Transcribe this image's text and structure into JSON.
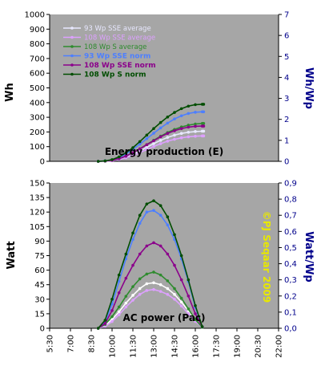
{
  "chart_data": [
    {
      "type": "line",
      "title": "Energy production (E)",
      "ylabel": "Wh",
      "y2label": "Wh/Wp",
      "ylim": [
        0,
        1000
      ],
      "y2lim": [
        0,
        7
      ],
      "y_ticks": [
        "0",
        "100",
        "200",
        "300",
        "400",
        "500",
        "600",
        "700",
        "800",
        "900",
        "1000"
      ],
      "y2_ticks": [
        "0",
        "1",
        "2",
        "3",
        "4",
        "5",
        "6",
        "7"
      ],
      "series": [
        {
          "name": "93 Wp SSE average",
          "color": "#e8e8ff",
          "axis": "left",
          "x": [
            9.0,
            9.5,
            10.0,
            10.5,
            11.0,
            11.5,
            12.0,
            12.5,
            13.0,
            13.5,
            14.0,
            14.5,
            15.0,
            15.5,
            16.0,
            16.5,
            16.6
          ],
          "values": [
            0,
            1,
            5,
            14,
            28,
            47,
            70,
            95,
            120,
            143,
            163,
            178,
            190,
            198,
            203,
            205,
            205
          ]
        },
        {
          "name": "108 Wp SSE average",
          "color": "#dda0ff",
          "axis": "left",
          "x": [
            9.0,
            9.5,
            10.0,
            10.5,
            11.0,
            11.5,
            12.0,
            12.5,
            13.0,
            13.5,
            14.0,
            14.5,
            15.0,
            15.5,
            16.0,
            16.5,
            16.6
          ],
          "values": [
            0,
            1,
            4,
            12,
            24,
            40,
            59,
            80,
            101,
            120,
            137,
            150,
            160,
            167,
            171,
            173,
            173
          ]
        },
        {
          "name": "108 Wp S average",
          "color": "#2e8b2e",
          "axis": "left",
          "x": [
            9.0,
            9.5,
            10.0,
            10.5,
            11.0,
            11.5,
            12.0,
            12.5,
            13.0,
            13.5,
            14.0,
            14.5,
            15.0,
            15.5,
            16.0,
            16.5,
            16.6
          ],
          "values": [
            0,
            2,
            7,
            18,
            35,
            58,
            85,
            114,
            143,
            171,
            196,
            217,
            234,
            246,
            254,
            258,
            258
          ]
        },
        {
          "name": "93 Wp SSE norm",
          "color": "#4d7fff",
          "axis": "right",
          "x": [
            9.0,
            9.5,
            10.0,
            10.5,
            11.0,
            11.5,
            12.0,
            12.5,
            13.0,
            13.5,
            14.0,
            14.5,
            15.0,
            15.5,
            16.0,
            16.5,
            16.6
          ],
          "values": [
            0,
            0.02,
            0.07,
            0.18,
            0.35,
            0.57,
            0.82,
            1.08,
            1.34,
            1.59,
            1.82,
            2.02,
            2.17,
            2.28,
            2.34,
            2.36,
            2.36
          ]
        },
        {
          "name": "108 Wp SSE norm",
          "color": "#8b008b",
          "axis": "right",
          "x": [
            9.0,
            9.5,
            10.0,
            10.5,
            11.0,
            11.5,
            12.0,
            12.5,
            13.0,
            13.5,
            14.0,
            14.5,
            15.0,
            15.5,
            16.0,
            16.5,
            16.6
          ],
          "values": [
            0,
            0.01,
            0.05,
            0.13,
            0.25,
            0.41,
            0.59,
            0.79,
            0.98,
            1.17,
            1.33,
            1.46,
            1.56,
            1.63,
            1.67,
            1.68,
            1.68
          ]
        },
        {
          "name": "108 Wp S norm",
          "color": "#004d00",
          "axis": "right",
          "x": [
            9.0,
            9.5,
            10.0,
            10.5,
            11.0,
            11.5,
            12.0,
            12.5,
            13.0,
            13.5,
            14.0,
            14.5,
            15.0,
            15.5,
            16.0,
            16.5,
            16.6
          ],
          "values": [
            0,
            0.02,
            0.08,
            0.21,
            0.4,
            0.65,
            0.94,
            1.25,
            1.56,
            1.85,
            2.11,
            2.33,
            2.51,
            2.63,
            2.7,
            2.72,
            2.72
          ]
        }
      ]
    },
    {
      "type": "line",
      "title": "AC power (Pac)",
      "ylabel": "Watt",
      "y2label": "Watt/Wp",
      "ylim": [
        0,
        150
      ],
      "y2lim": [
        0,
        0.9
      ],
      "y_ticks": [
        "0",
        "15",
        "30",
        "45",
        "60",
        "75",
        "90",
        "105",
        "120",
        "135",
        "150"
      ],
      "y2_ticks": [
        "0,0",
        "0,1",
        "0,2",
        "0,3",
        "0,4",
        "0,5",
        "0,6",
        "0,7",
        "0,8",
        "0,9"
      ],
      "x_ticks": [
        "5:30",
        "7:00",
        "8:30",
        "10:00",
        "11:30",
        "13:00",
        "14:30",
        "16:00",
        "17:30",
        "19:00",
        "20:30",
        "22:00"
      ],
      "xlim": [
        5.5,
        22.0
      ],
      "series": [
        {
          "name": "93 Wp SSE average",
          "color": "#ffffff",
          "axis": "left",
          "x": [
            9.0,
            9.5,
            10.0,
            10.5,
            11.0,
            11.5,
            12.0,
            12.5,
            13.0,
            13.5,
            14.0,
            14.5,
            15.0,
            15.5,
            16.0,
            16.5
          ],
          "values": [
            0,
            3,
            9,
            17,
            26,
            34,
            41,
            46,
            47,
            45,
            41,
            35,
            27,
            18,
            8,
            1
          ]
        },
        {
          "name": "108 Wp SSE average",
          "color": "#dda0ff",
          "axis": "left",
          "x": [
            9.0,
            9.5,
            10.0,
            10.5,
            11.0,
            11.5,
            12.0,
            12.5,
            13.0,
            13.5,
            14.0,
            14.5,
            15.0,
            15.5,
            16.0,
            16.5
          ],
          "values": [
            0,
            2,
            7,
            14,
            22,
            29,
            35,
            39,
            40,
            38,
            35,
            30,
            23,
            15,
            7,
            1
          ]
        },
        {
          "name": "108 Wp S average",
          "color": "#2e8b2e",
          "axis": "left",
          "x": [
            9.0,
            9.5,
            10.0,
            10.5,
            11.0,
            11.5,
            12.0,
            12.5,
            13.0,
            13.5,
            14.0,
            14.5,
            15.0,
            15.5,
            16.0,
            16.5
          ],
          "values": [
            0,
            4,
            12,
            22,
            33,
            43,
            51,
            56,
            58,
            55,
            49,
            41,
            31,
            20,
            9,
            1
          ]
        },
        {
          "name": "93 Wp SSE norm",
          "color": "#4d7fff",
          "axis": "right",
          "x": [
            9.0,
            9.5,
            10.0,
            10.5,
            11.0,
            11.5,
            12.0,
            12.5,
            13.0,
            13.5,
            14.0,
            14.5,
            15.0,
            15.5,
            16.0,
            16.5
          ],
          "values": [
            0,
            0.04,
            0.15,
            0.29,
            0.43,
            0.55,
            0.65,
            0.72,
            0.73,
            0.7,
            0.64,
            0.55,
            0.43,
            0.29,
            0.13,
            0.01
          ]
        },
        {
          "name": "108 Wp SSE norm",
          "color": "#8b008b",
          "axis": "right",
          "x": [
            9.0,
            9.5,
            10.0,
            10.5,
            11.0,
            11.5,
            12.0,
            12.5,
            13.0,
            13.5,
            14.0,
            14.5,
            15.0,
            15.5,
            16.0,
            16.5
          ],
          "values": [
            0,
            0.03,
            0.11,
            0.22,
            0.31,
            0.39,
            0.46,
            0.51,
            0.53,
            0.51,
            0.46,
            0.39,
            0.3,
            0.2,
            0.09,
            0.01
          ]
        },
        {
          "name": "108 Wp S norm",
          "color": "#004d00",
          "axis": "right",
          "x": [
            9.0,
            9.5,
            10.0,
            10.5,
            11.0,
            11.5,
            12.0,
            12.5,
            13.0,
            13.5,
            14.0,
            14.5,
            15.0,
            15.5,
            16.0,
            16.5
          ],
          "values": [
            0,
            0.05,
            0.18,
            0.33,
            0.46,
            0.59,
            0.7,
            0.77,
            0.79,
            0.76,
            0.69,
            0.58,
            0.45,
            0.3,
            0.14,
            0.01
          ]
        }
      ],
      "annotation": "©PJ Seqaar 2009"
    }
  ],
  "colors": {
    "plot_background": "#a6a6a6",
    "right_axis": "#00008b",
    "copyright": "#e8e800"
  },
  "grid": "off",
  "legend_position": "top-left"
}
